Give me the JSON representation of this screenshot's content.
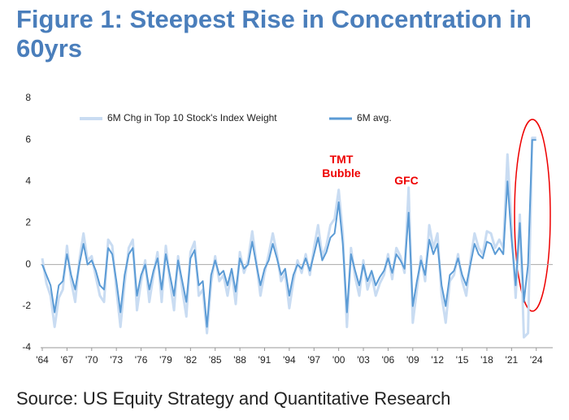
{
  "chart_data": {
    "type": "line",
    "title": "Figure 1: Steepest Rise in Concentration in 60yrs",
    "source": "Source: US Equity Strategy and Quantitative Research",
    "annotations": [
      "TMT Bubble",
      "GFC"
    ],
    "x": [
      1964,
      1964.5,
      1965,
      1965.5,
      1966,
      1966.5,
      1967,
      1967.5,
      1968,
      1968.5,
      1969,
      1969.5,
      1970,
      1970.5,
      1971,
      1971.5,
      1972,
      1972.5,
      1973,
      1973.5,
      1974,
      1974.5,
      1975,
      1975.5,
      1976,
      1976.5,
      1977,
      1977.5,
      1978,
      1978.5,
      1979,
      1979.5,
      1980,
      1980.5,
      1981,
      1981.5,
      1982,
      1982.5,
      1983,
      1983.5,
      1984,
      1984.5,
      1985,
      1985.5,
      1986,
      1986.5,
      1987,
      1987.5,
      1988,
      1988.5,
      1989,
      1989.5,
      1990,
      1990.5,
      1991,
      1991.5,
      1992,
      1992.5,
      1993,
      1993.5,
      1994,
      1994.5,
      1995,
      1995.5,
      1996,
      1996.5,
      1997,
      1997.5,
      1998,
      1998.5,
      1999,
      1999.5,
      2000,
      2000.5,
      2001,
      2001.5,
      2002,
      2002.5,
      2003,
      2003.5,
      2004,
      2004.5,
      2005,
      2005.5,
      2006,
      2006.5,
      2007,
      2007.5,
      2008,
      2008.5,
      2009,
      2009.5,
      2010,
      2010.5,
      2011,
      2011.5,
      2012,
      2012.5,
      2013,
      2013.5,
      2014,
      2014.5,
      2015,
      2015.5,
      2016,
      2016.5,
      2017,
      2017.5,
      2018,
      2018.5,
      2019,
      2019.5,
      2020,
      2020.5,
      2021,
      2021.5,
      2022,
      2022.5,
      2023,
      2023.5,
      2024
    ],
    "series": [
      {
        "name": "6M Chg in Top 10 Stock's Index Weight",
        "color": "#c9dcf2",
        "width": 3,
        "values": [
          0.3,
          -0.9,
          -1.5,
          -3,
          -1.6,
          -1.2,
          0.9,
          -0.8,
          -1.8,
          0.2,
          1.5,
          0.2,
          0.4,
          -0.6,
          -1.5,
          -1.8,
          1.2,
          0.9,
          -1.2,
          -3,
          -0.9,
          0.8,
          1.2,
          -2.2,
          -0.8,
          0.2,
          -1.8,
          -0.5,
          0.6,
          -1.8,
          0.9,
          -0.8,
          -2.2,
          0.4,
          -1.2,
          -2.5,
          0.6,
          1.1,
          -1.5,
          -1.2,
          -3.3,
          -0.9,
          0.4,
          -0.8,
          -0.5,
          -1.5,
          -0.3,
          -1.9,
          0.6,
          -0.4,
          0.2,
          1.6,
          0.1,
          -1.5,
          -0.4,
          0.5,
          1.5,
          0.5,
          -0.8,
          -0.4,
          -2.1,
          -0.8,
          0.2,
          -0.4,
          0.5,
          -0.5,
          0.8,
          1.9,
          0.4,
          0.9,
          1.9,
          2.2,
          3.6,
          1.5,
          -3,
          0.8,
          -0.6,
          -1.5,
          0.2,
          -1.2,
          -0.5,
          -1.5,
          -0.9,
          -0.5,
          0.5,
          -0.7,
          0.8,
          0.4,
          -0.4,
          3.7,
          -2.8,
          -1.2,
          0.4,
          -0.8,
          1.9,
          0.8,
          1.5,
          -1.5,
          -2.8,
          -0.8,
          -0.5,
          0.5,
          -0.8,
          -1.5,
          0.2,
          1.5,
          0.8,
          0.5,
          1.6,
          1.5,
          0.8,
          1.2,
          0.8,
          5.3,
          1.8,
          -1.6,
          2.4,
          -3.5,
          -3.3,
          6.1,
          6.1
        ]
      },
      {
        "name": "6M avg.",
        "color": "#5b9bd5",
        "width": 2,
        "values": [
          0,
          -0.5,
          -1,
          -2.3,
          -1,
          -0.8,
          0.5,
          -0.5,
          -1.2,
          0,
          1,
          0,
          0.2,
          -0.3,
          -1,
          -1.2,
          0.8,
          0.5,
          -0.8,
          -2.3,
          -0.5,
          0.5,
          0.8,
          -1.5,
          -0.5,
          0,
          -1.2,
          -0.3,
          0.3,
          -1.2,
          0.5,
          -0.5,
          -1.5,
          0.2,
          -0.8,
          -1.8,
          0.3,
          0.7,
          -1,
          -0.8,
          -3,
          -0.5,
          0.2,
          -0.5,
          -0.3,
          -1,
          -0.2,
          -1.3,
          0.3,
          -0.2,
          0,
          1.1,
          0,
          -1,
          -0.2,
          0.2,
          1,
          0.3,
          -0.5,
          -0.2,
          -1.5,
          -0.5,
          0,
          -0.2,
          0.3,
          -0.3,
          0.5,
          1.3,
          0.2,
          0.6,
          1.3,
          1.5,
          3,
          1,
          -2.3,
          0.5,
          -0.3,
          -1,
          0,
          -0.8,
          -0.3,
          -1,
          -0.6,
          -0.3,
          0.3,
          -0.4,
          0.5,
          0.2,
          -0.2,
          2.5,
          -2,
          -0.8,
          0.2,
          -0.5,
          1.2,
          0.5,
          1,
          -1,
          -2,
          -0.5,
          -0.3,
          0.3,
          -0.5,
          -1,
          0,
          1,
          0.5,
          0.3,
          1.1,
          1,
          0.5,
          0.8,
          0.5,
          4,
          1.2,
          -1,
          2,
          -1.8,
          0,
          6,
          6
        ]
      }
    ],
    "xlim": [
      1963.8,
      2026
    ],
    "xticks": [
      {
        "value": 1964,
        "label": "'64"
      },
      {
        "value": 1967,
        "label": "'67"
      },
      {
        "value": 1970,
        "label": "'70"
      },
      {
        "value": 1973,
        "label": "'73"
      },
      {
        "value": 1976,
        "label": "'76"
      },
      {
        "value": 1979,
        "label": "'79"
      },
      {
        "value": 1982,
        "label": "'82"
      },
      {
        "value": 1985,
        "label": "'85"
      },
      {
        "value": 1988,
        "label": "'88"
      },
      {
        "value": 1991,
        "label": "'91"
      },
      {
        "value": 1994,
        "label": "'94"
      },
      {
        "value": 1997,
        "label": "'97"
      },
      {
        "value": 2000,
        "label": "'00"
      },
      {
        "value": 2003,
        "label": "'03"
      },
      {
        "value": 2006,
        "label": "'06"
      },
      {
        "value": 2009,
        "label": "'09"
      },
      {
        "value": 2012,
        "label": "'12"
      },
      {
        "value": 2015,
        "label": "'15"
      },
      {
        "value": 2018,
        "label": "'18"
      },
      {
        "value": 2021,
        "label": "'21"
      },
      {
        "value": 2024,
        "label": "'24"
      }
    ],
    "ylim": [
      -4,
      8
    ],
    "yticks": [
      -4,
      -2,
      0,
      2,
      4,
      6,
      8
    ],
    "legend": "top"
  }
}
